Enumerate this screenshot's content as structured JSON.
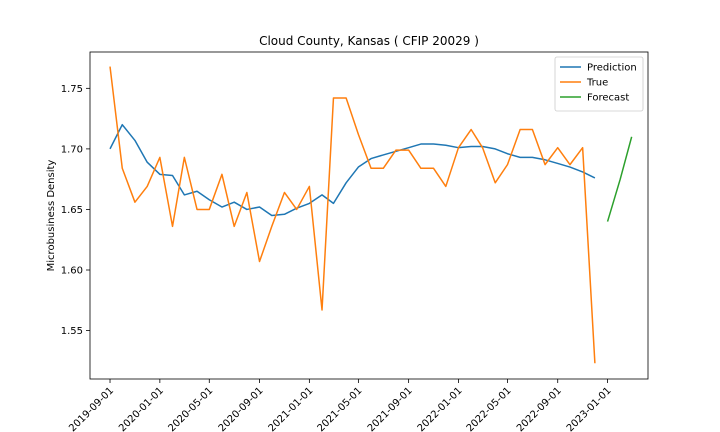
{
  "chart_data": {
    "type": "line",
    "title": "Cloud County, Kansas ( CFIP 20029 )",
    "xlabel": "",
    "ylabel": "Microbusiness Density",
    "ylim": [
      1.51,
      1.78
    ],
    "xlim": [
      "2019-07-14",
      "2023-04-10"
    ],
    "x_ticks": [
      "2019-09-01",
      "2020-01-01",
      "2020-05-01",
      "2020-09-01",
      "2021-01-01",
      "2021-05-01",
      "2021-09-01",
      "2022-01-01",
      "2022-05-01",
      "2022-09-01",
      "2023-01-01"
    ],
    "y_ticks": [
      1.55,
      1.6,
      1.65,
      1.7,
      1.75
    ],
    "y_tick_labels": [
      "1.55",
      "1.60",
      "1.65",
      "1.70",
      "1.75"
    ],
    "grid": false,
    "legend_position": "top-right",
    "series": [
      {
        "name": "Prediction",
        "color": "#1f77b4",
        "points": [
          [
            "2019-09-01",
            1.7
          ],
          [
            "2019-10-01",
            1.72
          ],
          [
            "2019-11-01",
            1.707
          ],
          [
            "2019-12-01",
            1.689
          ],
          [
            "2020-01-01",
            1.679
          ],
          [
            "2020-02-01",
            1.678
          ],
          [
            "2020-03-01",
            1.662
          ],
          [
            "2020-04-01",
            1.665
          ],
          [
            "2020-05-01",
            1.658
          ],
          [
            "2020-06-01",
            1.652
          ],
          [
            "2020-07-01",
            1.656
          ],
          [
            "2020-08-01",
            1.65
          ],
          [
            "2020-09-01",
            1.652
          ],
          [
            "2020-10-01",
            1.645
          ],
          [
            "2020-11-01",
            1.646
          ],
          [
            "2020-12-01",
            1.651
          ],
          [
            "2021-01-01",
            1.655
          ],
          [
            "2021-02-01",
            1.662
          ],
          [
            "2021-03-01",
            1.655
          ],
          [
            "2021-04-01",
            1.672
          ],
          [
            "2021-05-01",
            1.685
          ],
          [
            "2021-06-01",
            1.692
          ],
          [
            "2021-07-01",
            1.695
          ],
          [
            "2021-08-01",
            1.698
          ],
          [
            "2021-09-01",
            1.701
          ],
          [
            "2021-10-01",
            1.704
          ],
          [
            "2021-11-01",
            1.704
          ],
          [
            "2021-12-01",
            1.703
          ],
          [
            "2022-01-01",
            1.701
          ],
          [
            "2022-02-01",
            1.702
          ],
          [
            "2022-03-01",
            1.702
          ],
          [
            "2022-04-01",
            1.7
          ],
          [
            "2022-05-01",
            1.696
          ],
          [
            "2022-06-01",
            1.693
          ],
          [
            "2022-07-01",
            1.693
          ],
          [
            "2022-08-01",
            1.691
          ],
          [
            "2022-09-01",
            1.688
          ],
          [
            "2022-10-01",
            1.685
          ],
          [
            "2022-11-01",
            1.681
          ],
          [
            "2022-12-01",
            1.676
          ]
        ]
      },
      {
        "name": "True",
        "color": "#ff7f0e",
        "points": [
          [
            "2019-09-01",
            1.768
          ],
          [
            "2019-10-01",
            1.684
          ],
          [
            "2019-11-01",
            1.656
          ],
          [
            "2019-12-01",
            1.669
          ],
          [
            "2020-01-01",
            1.693
          ],
          [
            "2020-02-01",
            1.636
          ],
          [
            "2020-03-01",
            1.693
          ],
          [
            "2020-04-01",
            1.65
          ],
          [
            "2020-05-01",
            1.65
          ],
          [
            "2020-06-01",
            1.679
          ],
          [
            "2020-07-01",
            1.636
          ],
          [
            "2020-08-01",
            1.664
          ],
          [
            "2020-09-01",
            1.607
          ],
          [
            "2020-10-01",
            1.636
          ],
          [
            "2020-11-01",
            1.664
          ],
          [
            "2020-12-01",
            1.65
          ],
          [
            "2021-01-01",
            1.669
          ],
          [
            "2021-02-01",
            1.567
          ],
          [
            "2021-03-01",
            1.742
          ],
          [
            "2021-04-01",
            1.742
          ],
          [
            "2021-05-01",
            1.712
          ],
          [
            "2021-06-01",
            1.684
          ],
          [
            "2021-07-01",
            1.684
          ],
          [
            "2021-08-01",
            1.699
          ],
          [
            "2021-09-01",
            1.699
          ],
          [
            "2021-10-01",
            1.684
          ],
          [
            "2021-11-01",
            1.684
          ],
          [
            "2021-12-01",
            1.669
          ],
          [
            "2022-01-01",
            1.701
          ],
          [
            "2022-02-01",
            1.716
          ],
          [
            "2022-03-01",
            1.701
          ],
          [
            "2022-04-01",
            1.672
          ],
          [
            "2022-05-01",
            1.687
          ],
          [
            "2022-06-01",
            1.716
          ],
          [
            "2022-07-01",
            1.716
          ],
          [
            "2022-08-01",
            1.687
          ],
          [
            "2022-09-01",
            1.701
          ],
          [
            "2022-10-01",
            1.687
          ],
          [
            "2022-11-01",
            1.701
          ],
          [
            "2022-12-01",
            1.523
          ]
        ]
      },
      {
        "name": "Forecast",
        "color": "#2ca02c",
        "points": [
          [
            "2023-01-01",
            1.64
          ],
          [
            "2023-02-01",
            1.675
          ],
          [
            "2023-03-01",
            1.71
          ]
        ]
      }
    ]
  }
}
